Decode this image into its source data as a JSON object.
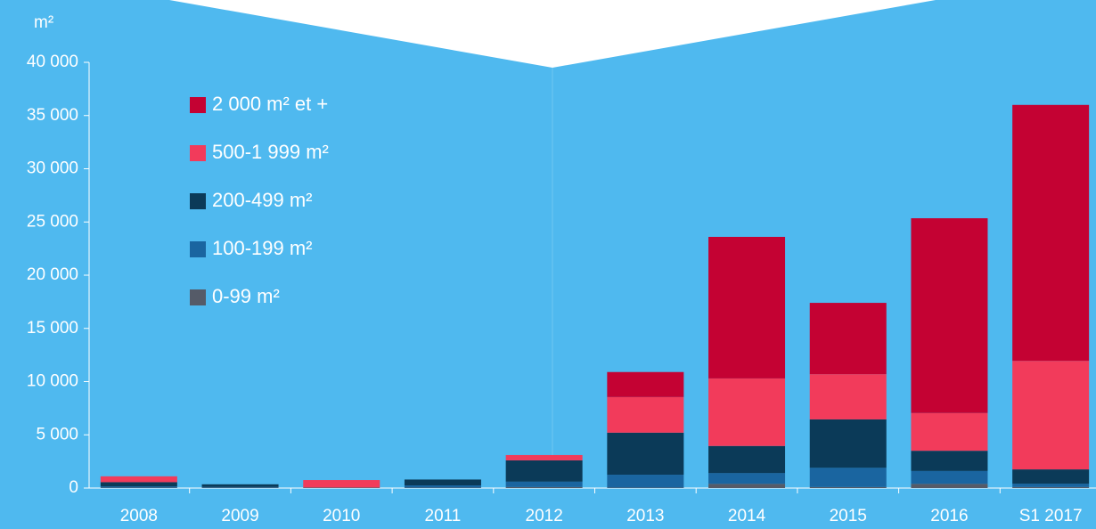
{
  "chart_data": {
    "type": "stacked_bar",
    "y_label": "m²",
    "categories": [
      "2008",
      "2009",
      "2010",
      "2011",
      "2012",
      "2013",
      "2014",
      "2015",
      "2016",
      "S1 2017"
    ],
    "series": [
      {
        "name": "0-99 m²",
        "color": "#555b68",
        "values": [
          50,
          50,
          50,
          50,
          100,
          50,
          400,
          100,
          400,
          100
        ]
      },
      {
        "name": "100-199 m²",
        "color": "#1a65a0",
        "values": [
          100,
          50,
          0,
          200,
          500,
          1200,
          1000,
          1800,
          1200,
          300
        ]
      },
      {
        "name": "200-499 m²",
        "color": "#0b3a58",
        "values": [
          400,
          250,
          0,
          550,
          2000,
          3950,
          2550,
          4550,
          1900,
          1350
        ]
      },
      {
        "name": "500-1 999 m²",
        "color": "#f23b5b",
        "values": [
          550,
          0,
          700,
          0,
          500,
          3350,
          6350,
          4250,
          3550,
          10200
        ]
      },
      {
        "name": "2 000 m² et +",
        "color": "#c40233",
        "values": [
          0,
          0,
          0,
          0,
          0,
          2350,
          13300,
          6700,
          18300,
          24050
        ]
      }
    ],
    "ylim": [
      0,
      40000
    ],
    "yticks": [
      0,
      {
        "value": 5000,
        "label": "5 000"
      },
      {
        "value": 10000,
        "label": "10 000"
      },
      {
        "value": 15000,
        "label": "15 000"
      },
      {
        "value": 20000,
        "label": "20 000"
      },
      {
        "value": 25000,
        "label": "25 000"
      },
      {
        "value": 30000,
        "label": "30 000"
      },
      {
        "value": 35000,
        "label": "35 000"
      },
      {
        "value": 40000,
        "label": "40 000"
      }
    ]
  }
}
